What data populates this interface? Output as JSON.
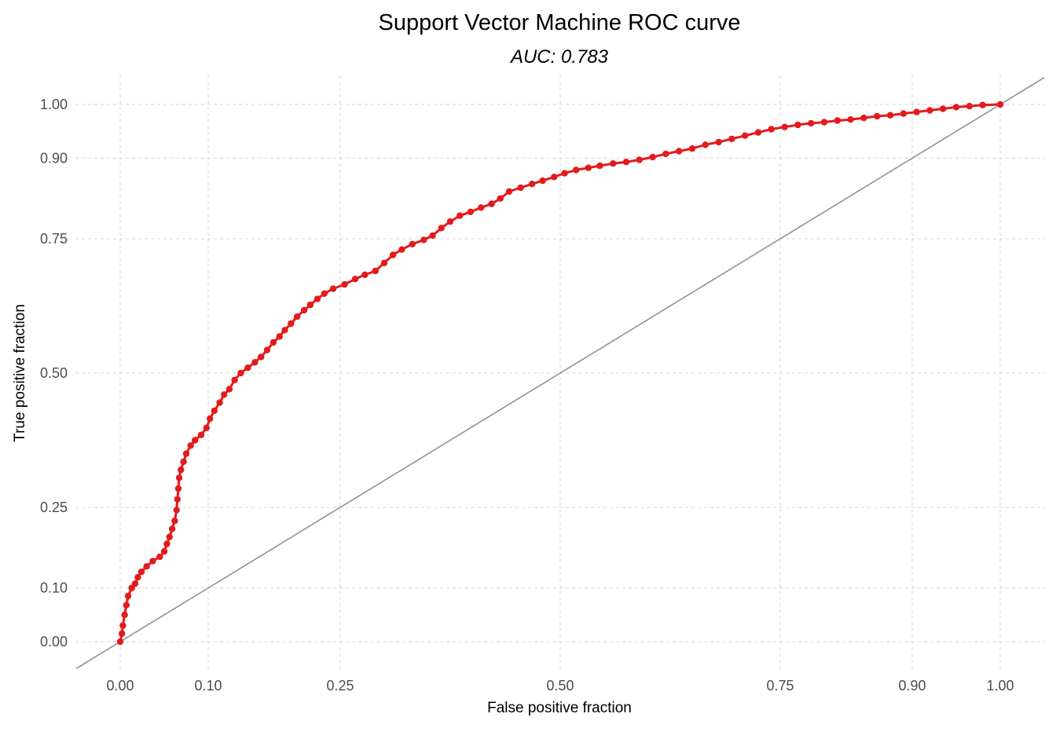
{
  "chart_data": {
    "type": "line",
    "title": "Support Vector Machine ROC curve",
    "subtitle": "AUC: 0.783",
    "xlabel": "False positive fraction",
    "ylabel": "True positive fraction",
    "xlim": [
      0,
      1
    ],
    "ylim": [
      0,
      1
    ],
    "x_ticks": [
      0.0,
      0.1,
      0.25,
      0.5,
      0.75,
      0.9,
      1.0
    ],
    "x_tick_labels": [
      "0.00",
      "0.10",
      "0.25",
      "0.50",
      "0.75",
      "0.90",
      "1.00"
    ],
    "y_ticks": [
      0.0,
      0.1,
      0.25,
      0.5,
      0.75,
      0.9,
      1.0
    ],
    "y_tick_labels": [
      "0.00",
      "0.10",
      "0.25",
      "0.50",
      "0.75",
      "0.90",
      "1.00"
    ],
    "grid": true,
    "legend": "none",
    "colors": {
      "roc": "#e41a1c",
      "diagonal": "#8c8c8c"
    },
    "series": [
      {
        "points": [
          [
            0.0,
            0.0
          ],
          [
            0.002,
            0.015
          ],
          [
            0.003,
            0.03
          ],
          [
            0.005,
            0.05
          ],
          [
            0.007,
            0.068
          ],
          [
            0.009,
            0.085
          ],
          [
            0.013,
            0.1
          ],
          [
            0.017,
            0.108
          ],
          [
            0.02,
            0.12
          ],
          [
            0.024,
            0.13
          ],
          [
            0.03,
            0.14
          ],
          [
            0.037,
            0.15
          ],
          [
            0.045,
            0.158
          ],
          [
            0.05,
            0.168
          ],
          [
            0.053,
            0.182
          ],
          [
            0.056,
            0.195
          ],
          [
            0.059,
            0.21
          ],
          [
            0.062,
            0.225
          ],
          [
            0.064,
            0.245
          ],
          [
            0.065,
            0.265
          ],
          [
            0.066,
            0.285
          ],
          [
            0.067,
            0.305
          ],
          [
            0.069,
            0.32
          ],
          [
            0.072,
            0.335
          ],
          [
            0.075,
            0.35
          ],
          [
            0.08,
            0.365
          ],
          [
            0.085,
            0.375
          ],
          [
            0.092,
            0.385
          ],
          [
            0.098,
            0.398
          ],
          [
            0.102,
            0.415
          ],
          [
            0.107,
            0.43
          ],
          [
            0.113,
            0.445
          ],
          [
            0.118,
            0.46
          ],
          [
            0.124,
            0.47
          ],
          [
            0.13,
            0.487
          ],
          [
            0.137,
            0.5
          ],
          [
            0.145,
            0.51
          ],
          [
            0.153,
            0.52
          ],
          [
            0.16,
            0.53
          ],
          [
            0.167,
            0.543
          ],
          [
            0.174,
            0.557
          ],
          [
            0.181,
            0.568
          ],
          [
            0.187,
            0.58
          ],
          [
            0.194,
            0.592
          ],
          [
            0.201,
            0.605
          ],
          [
            0.209,
            0.617
          ],
          [
            0.216,
            0.627
          ],
          [
            0.224,
            0.638
          ],
          [
            0.232,
            0.648
          ],
          [
            0.242,
            0.657
          ],
          [
            0.255,
            0.665
          ],
          [
            0.267,
            0.675
          ],
          [
            0.278,
            0.683
          ],
          [
            0.29,
            0.69
          ],
          [
            0.3,
            0.705
          ],
          [
            0.31,
            0.72
          ],
          [
            0.32,
            0.73
          ],
          [
            0.332,
            0.74
          ],
          [
            0.345,
            0.748
          ],
          [
            0.355,
            0.756
          ],
          [
            0.365,
            0.77
          ],
          [
            0.375,
            0.782
          ],
          [
            0.386,
            0.793
          ],
          [
            0.398,
            0.8
          ],
          [
            0.41,
            0.808
          ],
          [
            0.422,
            0.815
          ],
          [
            0.432,
            0.825
          ],
          [
            0.442,
            0.838
          ],
          [
            0.455,
            0.845
          ],
          [
            0.468,
            0.852
          ],
          [
            0.48,
            0.858
          ],
          [
            0.493,
            0.865
          ],
          [
            0.505,
            0.872
          ],
          [
            0.518,
            0.878
          ],
          [
            0.532,
            0.882
          ],
          [
            0.545,
            0.886
          ],
          [
            0.56,
            0.89
          ],
          [
            0.575,
            0.893
          ],
          [
            0.59,
            0.897
          ],
          [
            0.605,
            0.902
          ],
          [
            0.62,
            0.908
          ],
          [
            0.635,
            0.913
          ],
          [
            0.65,
            0.918
          ],
          [
            0.665,
            0.925
          ],
          [
            0.68,
            0.93
          ],
          [
            0.695,
            0.936
          ],
          [
            0.71,
            0.942
          ],
          [
            0.725,
            0.948
          ],
          [
            0.74,
            0.954
          ],
          [
            0.755,
            0.958
          ],
          [
            0.77,
            0.962
          ],
          [
            0.785,
            0.965
          ],
          [
            0.8,
            0.967
          ],
          [
            0.815,
            0.97
          ],
          [
            0.83,
            0.972
          ],
          [
            0.845,
            0.975
          ],
          [
            0.86,
            0.978
          ],
          [
            0.875,
            0.98
          ],
          [
            0.89,
            0.983
          ],
          [
            0.905,
            0.986
          ],
          [
            0.92,
            0.989
          ],
          [
            0.935,
            0.992
          ],
          [
            0.95,
            0.995
          ],
          [
            0.965,
            0.997
          ],
          [
            0.98,
            0.999
          ],
          [
            1.0,
            1.0
          ]
        ]
      },
      {
        "type": "reference",
        "points": [
          [
            -0.05,
            -0.05
          ],
          [
            1.05,
            1.05
          ]
        ]
      }
    ]
  }
}
